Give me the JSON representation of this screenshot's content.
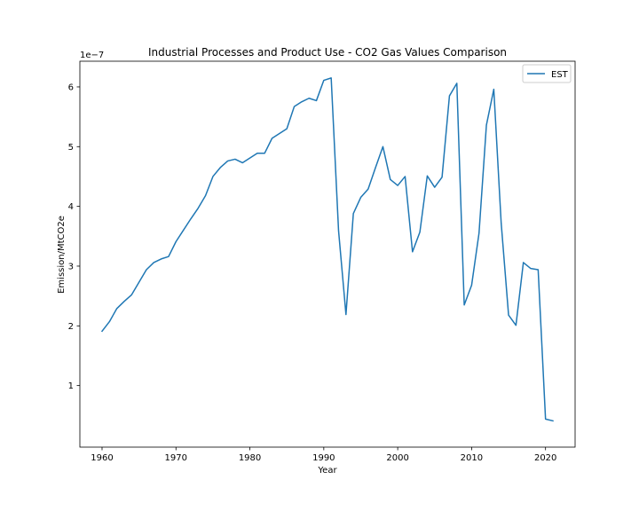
{
  "chart_data": {
    "type": "line",
    "title": "Industrial Processes and Product Use - CO2 Gas Values Comparison",
    "xlabel": "Year",
    "ylabel": "Emission/MtCO2e",
    "y_offset_label": "1e−7",
    "xlim": [
      1957,
      2024
    ],
    "ylim": [
      -0.003,
      0.643
    ],
    "x_ticks": [
      1960,
      1970,
      1980,
      1990,
      2000,
      2010,
      2020
    ],
    "y_ticks": [
      1,
      2,
      3,
      4,
      5,
      6
    ],
    "y_scale_note": "values multiplied by 1e-7",
    "grid": false,
    "legend_position": "upper right",
    "x": [
      1960,
      1961,
      1962,
      1963,
      1964,
      1965,
      1966,
      1967,
      1968,
      1969,
      1970,
      1971,
      1972,
      1973,
      1974,
      1975,
      1976,
      1977,
      1978,
      1979,
      1980,
      1981,
      1982,
      1983,
      1984,
      1985,
      1986,
      1987,
      1988,
      1989,
      1990,
      1991,
      1992,
      1993,
      1994,
      1995,
      1996,
      1997,
      1998,
      1999,
      2000,
      2001,
      2002,
      2003,
      2004,
      2005,
      2006,
      2007,
      2008,
      2009,
      2010,
      2011,
      2012,
      2013,
      2014,
      2015,
      2016,
      2017,
      2018,
      2019,
      2020,
      2021
    ],
    "series": [
      {
        "name": "EST",
        "color": "#1f77b4",
        "values": [
          0.191,
          0.207,
          0.229,
          0.241,
          0.252,
          0.273,
          0.294,
          0.306,
          0.312,
          0.316,
          0.341,
          0.36,
          0.379,
          0.397,
          0.418,
          0.45,
          0.465,
          0.476,
          0.479,
          0.473,
          0.481,
          0.489,
          0.489,
          0.514,
          0.522,
          0.53,
          0.567,
          0.575,
          0.581,
          0.577,
          0.611,
          0.615,
          0.359,
          0.219,
          0.388,
          0.415,
          0.429,
          0.465,
          0.5,
          0.445,
          0.435,
          0.45,
          0.324,
          0.357,
          0.451,
          0.432,
          0.449,
          0.585,
          0.606,
          0.235,
          0.268,
          0.355,
          0.536,
          0.596,
          0.372,
          0.218,
          0.201,
          0.306,
          0.296,
          0.294,
          0.044,
          0.041
        ]
      }
    ]
  }
}
